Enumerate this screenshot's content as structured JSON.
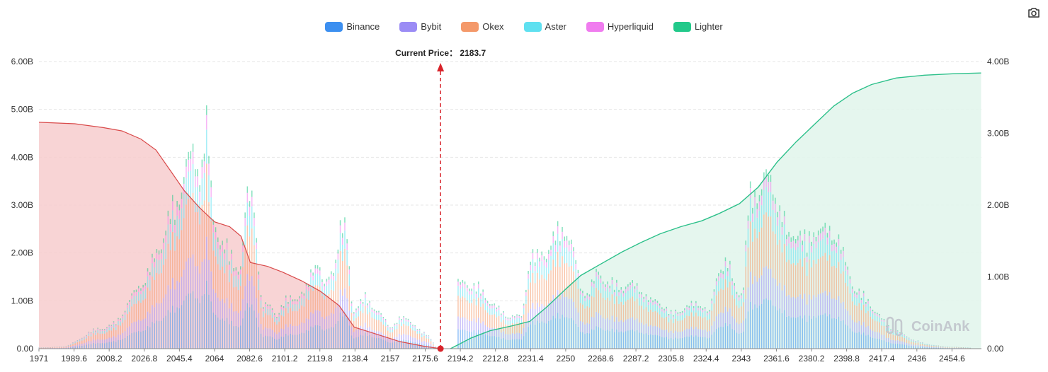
{
  "legend": [
    {
      "name": "Binance",
      "color": "#3c8ff0"
    },
    {
      "name": "Bybit",
      "color": "#9b8cf5"
    },
    {
      "name": "Okex",
      "color": "#f4996a"
    },
    {
      "name": "Aster",
      "color": "#5fe0f0"
    },
    {
      "name": "Hyperliquid",
      "color": "#f07cef"
    },
    {
      "name": "Lighter",
      "color": "#22c98a"
    }
  ],
  "toolbar": {
    "camera_icon": "camera-icon"
  },
  "watermark": "CoinAnk",
  "current_price": {
    "label": "Current Price：",
    "value": "2183.7",
    "price": 2183.7
  },
  "chart_data": {
    "type": "bar",
    "x_range": [
      1971,
      2470.2
    ],
    "x_ticks": [
      "1971",
      "1989.6",
      "2008.2",
      "2026.8",
      "2045.4",
      "2064",
      "2082.6",
      "2101.2",
      "2119.8",
      "2138.4",
      "2157",
      "2175.6",
      "2194.2",
      "2212.8",
      "2231.4",
      "2250",
      "2268.6",
      "2287.2",
      "2305.8",
      "2324.4",
      "2343",
      "2361.6",
      "2380.2",
      "2398.8",
      "2417.4",
      "2436",
      "2454.6"
    ],
    "left_axis": {
      "ticks": [
        "0.00",
        "1.00B",
        "2.00B",
        "3.00B",
        "4.00B",
        "5.00B",
        "6.00B"
      ],
      "ylim": [
        0,
        6
      ]
    },
    "right_axis": {
      "ticks": [
        "0.00",
        "1.00B",
        "2.00B",
        "3.00B",
        "4.00B"
      ],
      "ylim": [
        0,
        4
      ]
    },
    "grid": true,
    "legend_position": "top-center",
    "bar_envelope": [
      [
        1971,
        0.02
      ],
      [
        1985,
        0.05
      ],
      [
        1992,
        0.2
      ],
      [
        1998,
        0.4
      ],
      [
        2006,
        0.5
      ],
      [
        2012,
        0.6
      ],
      [
        2020,
        1.2
      ],
      [
        2028,
        1.7
      ],
      [
        2035,
        2.4
      ],
      [
        2041,
        3.2
      ],
      [
        2044,
        3.3
      ],
      [
        2048,
        4.2
      ],
      [
        2052,
        4.5
      ],
      [
        2056,
        4.1
      ],
      [
        2060,
        5.3
      ],
      [
        2063,
        3.0
      ],
      [
        2067,
        2.6
      ],
      [
        2071,
        2.3
      ],
      [
        2075,
        1.9
      ],
      [
        2078,
        2.0
      ],
      [
        2081,
        3.5
      ],
      [
        2085,
        3.4
      ],
      [
        2089,
        1.0
      ],
      [
        2093,
        1.0
      ],
      [
        2097,
        0.8
      ],
      [
        2101,
        1.1
      ],
      [
        2106,
        1.2
      ],
      [
        2112,
        1.3
      ],
      [
        2118,
        2.2
      ],
      [
        2122,
        1.4
      ],
      [
        2127,
        1.9
      ],
      [
        2131,
        2.9
      ],
      [
        2134,
        2.7
      ],
      [
        2137,
        0.9
      ],
      [
        2140,
        1.0
      ],
      [
        2144,
        1.2
      ],
      [
        2148,
        1.0
      ],
      [
        2152,
        0.8
      ],
      [
        2157,
        0.5
      ],
      [
        2162,
        0.7
      ],
      [
        2167,
        0.7
      ],
      [
        2173,
        0.4
      ],
      [
        2178,
        0.3
      ],
      [
        2181,
        0.05
      ],
      [
        2183.7,
        0.0
      ],
      [
        2192,
        0.0
      ],
      [
        2193,
        1.5
      ],
      [
        2198,
        1.55
      ],
      [
        2204,
        1.4
      ],
      [
        2210,
        1.1
      ],
      [
        2216,
        0.85
      ],
      [
        2222,
        0.75
      ],
      [
        2227,
        0.75
      ],
      [
        2231,
        2.2
      ],
      [
        2235,
        2.1
      ],
      [
        2240,
        2.3
      ],
      [
        2246,
        2.7
      ],
      [
        2250,
        2.85
      ],
      [
        2254,
        2.3
      ],
      [
        2258,
        1.4
      ],
      [
        2262,
        1.3
      ],
      [
        2267,
        1.8
      ],
      [
        2272,
        1.55
      ],
      [
        2278,
        1.45
      ],
      [
        2284,
        1.5
      ],
      [
        2290,
        1.4
      ],
      [
        2295,
        1.1
      ],
      [
        2300,
        1.1
      ],
      [
        2306,
        0.8
      ],
      [
        2310,
        0.9
      ],
      [
        2316,
        1.0
      ],
      [
        2321,
        1.1
      ],
      [
        2326,
        0.8
      ],
      [
        2331,
        1.9
      ],
      [
        2336,
        2.0
      ],
      [
        2340,
        1.4
      ],
      [
        2344,
        1.3
      ],
      [
        2347,
        3.5
      ],
      [
        2352,
        3.7
      ],
      [
        2356,
        4.0
      ],
      [
        2360,
        3.7
      ],
      [
        2364,
        3.3
      ],
      [
        2368,
        2.5
      ],
      [
        2373,
        2.8
      ],
      [
        2378,
        2.4
      ],
      [
        2382,
        2.85
      ],
      [
        2388,
        2.7
      ],
      [
        2394,
        2.7
      ],
      [
        2398,
        2.0
      ],
      [
        2402,
        1.5
      ],
      [
        2408,
        1.2
      ],
      [
        2414,
        0.9
      ],
      [
        2420,
        0.55
      ],
      [
        2426,
        0.4
      ],
      [
        2432,
        0.25
      ],
      [
        2440,
        0.12
      ],
      [
        2450,
        0.05
      ],
      [
        2465,
        0.02
      ]
    ],
    "series": [
      {
        "name": "Binance",
        "color": "#3c8ff0",
        "share": 0.28
      },
      {
        "name": "Bybit",
        "color": "#9b8cf5",
        "share": 0.18
      },
      {
        "name": "Okex",
        "color": "#f4996a",
        "share": 0.3
      },
      {
        "name": "Aster",
        "color": "#5fe0f0",
        "share": 0.14
      },
      {
        "name": "Hyperliquid",
        "color": "#f07cef",
        "share": 0.06
      },
      {
        "name": "Lighter",
        "color": "#22c98a",
        "share": 0.04
      }
    ],
    "short_cumulative": {
      "side": "left",
      "color": "#d94a4a",
      "fill": "#f7cdce",
      "points": [
        [
          1971,
          4.73
        ],
        [
          1990,
          4.7
        ],
        [
          2005,
          4.62
        ],
        [
          2015,
          4.55
        ],
        [
          2025,
          4.38
        ],
        [
          2033,
          4.15
        ],
        [
          2041,
          3.7
        ],
        [
          2048,
          3.3
        ],
        [
          2056,
          2.95
        ],
        [
          2064,
          2.65
        ],
        [
          2072,
          2.55
        ],
        [
          2078,
          2.35
        ],
        [
          2083,
          1.8
        ],
        [
          2092,
          1.72
        ],
        [
          2100,
          1.6
        ],
        [
          2110,
          1.42
        ],
        [
          2120,
          1.2
        ],
        [
          2130,
          0.9
        ],
        [
          2138,
          0.45
        ],
        [
          2150,
          0.3
        ],
        [
          2162,
          0.15
        ],
        [
          2175,
          0.05
        ],
        [
          2183.7,
          0.0
        ]
      ]
    },
    "long_cumulative": {
      "side": "right",
      "color": "#2cc08a",
      "fill": "#e2f5ec",
      "points": [
        [
          2189,
          0.0
        ],
        [
          2200,
          0.15
        ],
        [
          2210,
          0.25
        ],
        [
          2222,
          0.32
        ],
        [
          2231,
          0.38
        ],
        [
          2240,
          0.58
        ],
        [
          2250,
          0.83
        ],
        [
          2258,
          1.02
        ],
        [
          2268,
          1.17
        ],
        [
          2280,
          1.35
        ],
        [
          2290,
          1.48
        ],
        [
          2300,
          1.6
        ],
        [
          2311,
          1.7
        ],
        [
          2322,
          1.78
        ],
        [
          2331,
          1.88
        ],
        [
          2342,
          2.02
        ],
        [
          2352,
          2.25
        ],
        [
          2362,
          2.6
        ],
        [
          2372,
          2.88
        ],
        [
          2382,
          3.13
        ],
        [
          2392,
          3.38
        ],
        [
          2402,
          3.56
        ],
        [
          2412,
          3.68
        ],
        [
          2425,
          3.77
        ],
        [
          2440,
          3.81
        ],
        [
          2455,
          3.83
        ],
        [
          2470,
          3.84
        ]
      ]
    }
  }
}
